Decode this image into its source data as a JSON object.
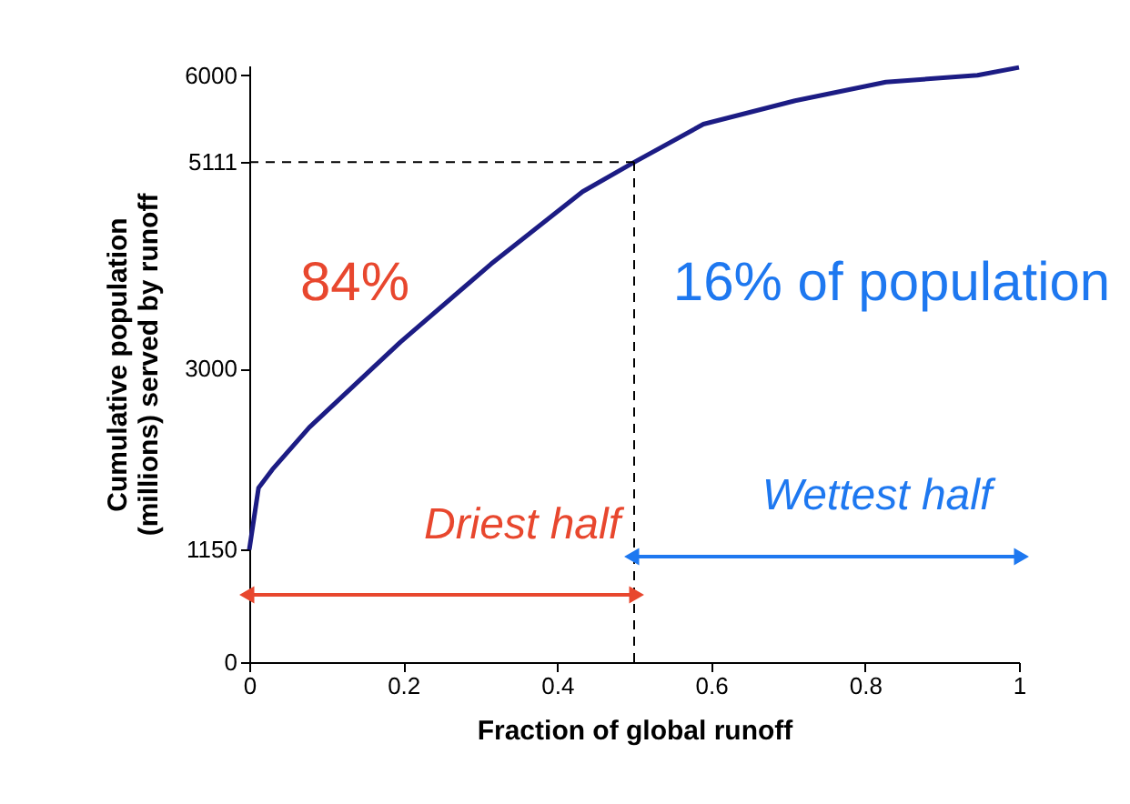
{
  "chart_data": {
    "type": "line",
    "xlabel": "Fraction of global runoff",
    "ylabel": "Cumulative population (millions) served by runoff",
    "x": [
      0,
      0.012,
      0.03,
      0.078,
      0.196,
      0.314,
      0.433,
      0.5,
      0.59,
      0.709,
      0.827,
      0.946,
      1.0
    ],
    "series": [
      {
        "color": "#1c1c84",
        "values": [
          1150,
          1780,
          1970,
          2400,
          3270,
          4070,
          4810,
          5111,
          5500,
          5740,
          5930,
          6000,
          6080
        ]
      }
    ],
    "xlim": [
      0,
      1
    ],
    "xticks": [
      0,
      0.2,
      0.4,
      0.6,
      0.8,
      1
    ],
    "ylim": [
      0,
      6100
    ],
    "yticks": [
      0,
      1150,
      3000,
      5111,
      6000
    ],
    "grid": false,
    "marker": "none",
    "line_style": "solid",
    "ref_lines": [
      {
        "axis": "y",
        "value": 5111,
        "line_style": "dashed",
        "color": "#000000"
      },
      {
        "axis": "x",
        "value": 0.5,
        "line_style": "dashed",
        "color": "#000000"
      }
    ],
    "annotations": [
      "84%",
      "16% of population",
      "Driest half",
      "Wettest half"
    ]
  }
}
